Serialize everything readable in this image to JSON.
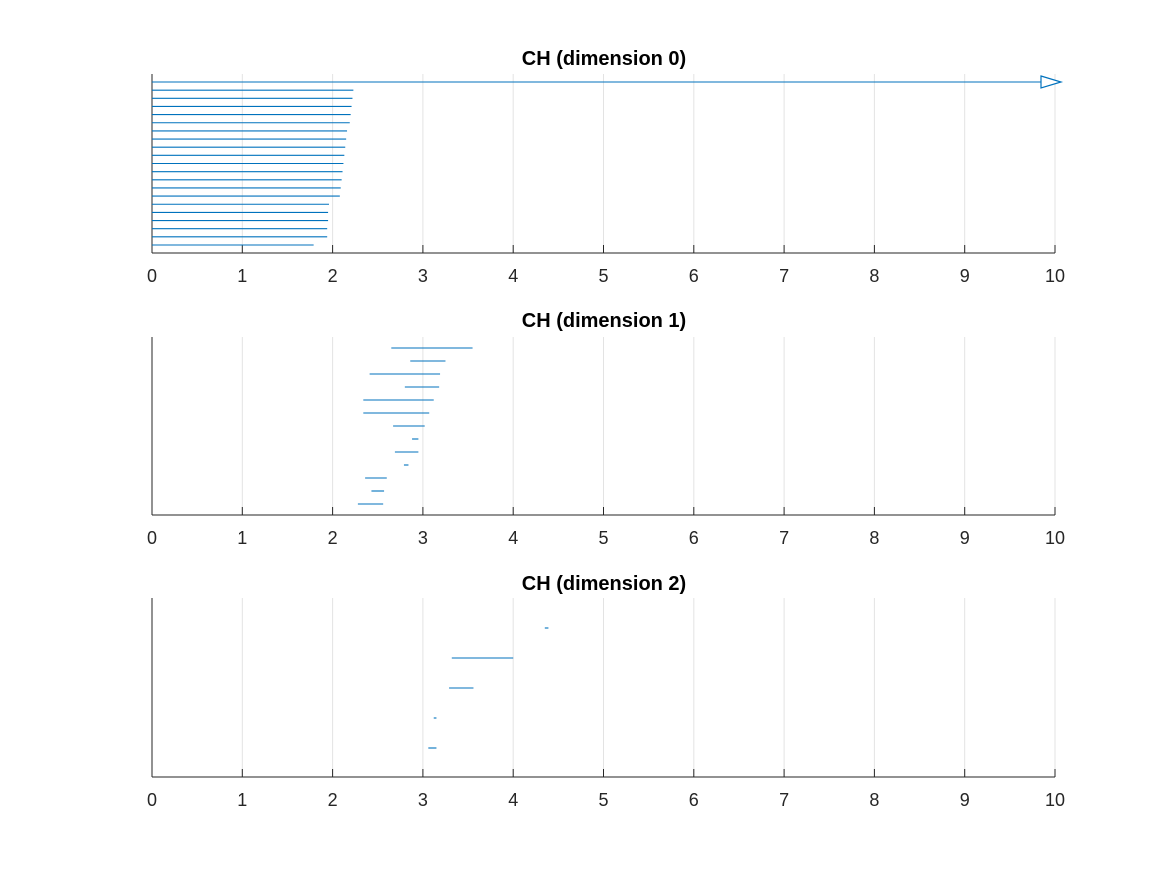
{
  "chart_data": [
    {
      "type": "barcode",
      "title": "CH (dimension 0)",
      "xlim": [
        0,
        10
      ],
      "xticks": [
        "0",
        "1",
        "2",
        "3",
        "4",
        "5",
        "6",
        "7",
        "8",
        "9",
        "10"
      ],
      "grid": "vertical",
      "color": "#0072bd",
      "infinite_bar": {
        "birth": 0,
        "death": "Inf"
      },
      "bars": [
        {
          "birth": 0,
          "death": 2.23
        },
        {
          "birth": 0,
          "death": 2.22
        },
        {
          "birth": 0,
          "death": 2.21
        },
        {
          "birth": 0,
          "death": 2.2
        },
        {
          "birth": 0,
          "death": 2.19
        },
        {
          "birth": 0,
          "death": 2.16
        },
        {
          "birth": 0,
          "death": 2.15
        },
        {
          "birth": 0,
          "death": 2.14
        },
        {
          "birth": 0,
          "death": 2.13
        },
        {
          "birth": 0,
          "death": 2.12
        },
        {
          "birth": 0,
          "death": 2.11
        },
        {
          "birth": 0,
          "death": 2.1
        },
        {
          "birth": 0,
          "death": 2.09
        },
        {
          "birth": 0,
          "death": 2.08
        },
        {
          "birth": 0,
          "death": 1.96
        },
        {
          "birth": 0,
          "death": 1.95
        },
        {
          "birth": 0,
          "death": 1.95
        },
        {
          "birth": 0,
          "death": 1.94
        },
        {
          "birth": 0,
          "death": 1.94
        },
        {
          "birth": 0,
          "death": 1.79
        }
      ]
    },
    {
      "type": "barcode",
      "title": "CH (dimension 1)",
      "xlim": [
        0,
        10
      ],
      "xticks": [
        "0",
        "1",
        "2",
        "3",
        "4",
        "5",
        "6",
        "7",
        "8",
        "9",
        "10"
      ],
      "grid": "vertical",
      "color": "#0072bd",
      "bars": [
        {
          "birth": 2.65,
          "death": 3.55
        },
        {
          "birth": 2.86,
          "death": 3.25
        },
        {
          "birth": 2.41,
          "death": 3.19
        },
        {
          "birth": 2.8,
          "death": 3.18
        },
        {
          "birth": 2.34,
          "death": 3.12
        },
        {
          "birth": 2.34,
          "death": 3.07
        },
        {
          "birth": 2.67,
          "death": 3.02
        },
        {
          "birth": 2.88,
          "death": 2.95
        },
        {
          "birth": 2.69,
          "death": 2.95
        },
        {
          "birth": 2.79,
          "death": 2.84
        },
        {
          "birth": 2.36,
          "death": 2.6
        },
        {
          "birth": 2.43,
          "death": 2.57
        },
        {
          "birth": 2.28,
          "death": 2.56
        }
      ]
    },
    {
      "type": "barcode",
      "title": "CH (dimension 2)",
      "xlim": [
        0,
        10
      ],
      "xticks": [
        "0",
        "1",
        "2",
        "3",
        "4",
        "5",
        "6",
        "7",
        "8",
        "9",
        "10"
      ],
      "grid": "vertical",
      "color": "#0072bd",
      "bars": [
        {
          "birth": 4.35,
          "death": 4.39
        },
        {
          "birth": 3.32,
          "death": 4.0
        },
        {
          "birth": 3.29,
          "death": 3.56
        },
        {
          "birth": 3.12,
          "death": 3.15
        },
        {
          "birth": 3.06,
          "death": 3.15
        }
      ]
    }
  ]
}
